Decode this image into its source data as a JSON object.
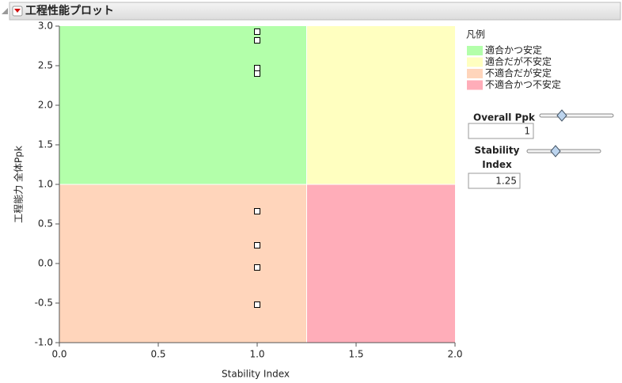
{
  "chart_data": {
    "type": "scatter",
    "title": "工程性能プロット",
    "xlabel": "Stability Index",
    "ylabel": "工程能力 全体Ppk",
    "x": [
      1.0,
      1.0,
      1.0,
      1.0,
      1.0,
      1.0,
      1.0,
      1.0
    ],
    "values": [
      2.93,
      2.82,
      2.47,
      2.4,
      0.66,
      0.23,
      -0.05,
      -0.52
    ],
    "xlim": [
      0,
      2.0
    ],
    "xticks": [
      {
        "value": 0,
        "label": "0.0"
      },
      {
        "value": 0.5,
        "label": "0.5"
      },
      {
        "value": 1,
        "label": "1.0"
      },
      {
        "value": 1.5,
        "label": "1.5"
      },
      {
        "value": 2,
        "label": "2.0"
      }
    ],
    "ylim": [
      -1.0,
      3.0
    ],
    "yticks": [
      {
        "value": -1,
        "label": "-1.0"
      },
      {
        "value": -0.5,
        "label": "-0.5"
      },
      {
        "value": 0,
        "label": "0.0"
      },
      {
        "value": 0.5,
        "label": "0.5"
      },
      {
        "value": 1,
        "label": "1.0"
      },
      {
        "value": 1.5,
        "label": "1.5"
      },
      {
        "value": 2,
        "label": "2.0"
      },
      {
        "value": 2.5,
        "label": "2.5"
      },
      {
        "value": 3,
        "label": "3.0"
      }
    ],
    "legend": {
      "title": "凡例",
      "items": [
        {
          "name": "適合かつ安定",
          "color": "#b3ffaa"
        },
        {
          "name": "適合だが不安定",
          "color": "#ffffc0"
        },
        {
          "name": "不適合だが安定",
          "color": "#ffd5bb"
        },
        {
          "name": "不適合かつ不安定",
          "color": "#ffadb9"
        }
      ]
    },
    "controls": {
      "ppk_label": "Overall Ppk",
      "ppk": 1,
      "stability_label": "Stability Index",
      "stability": 1.25
    }
  }
}
